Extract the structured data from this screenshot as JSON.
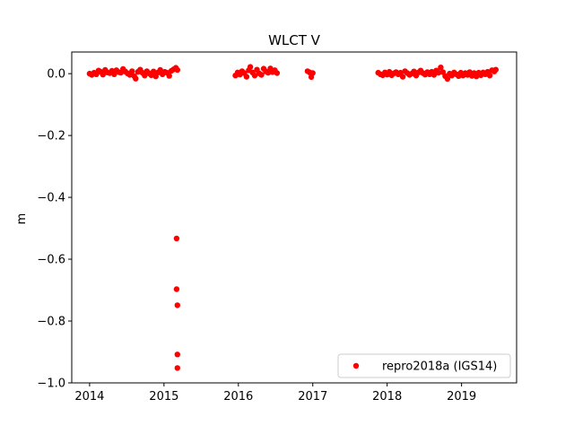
{
  "chart_data": {
    "type": "scatter",
    "title": "WLCT V",
    "xlabel": "",
    "ylabel": "m",
    "xlim": [
      2013.76,
      2019.74
    ],
    "ylim": [
      -1.0,
      0.07
    ],
    "x_ticks": [
      2014,
      2015,
      2016,
      2017,
      2018,
      2019
    ],
    "x_tick_labels": [
      "2014",
      "2015",
      "2016",
      "2017",
      "2018",
      "2019"
    ],
    "y_ticks": [
      0.0,
      -0.2,
      -0.4,
      -0.6,
      -0.8,
      -1.0
    ],
    "y_tick_labels": [
      "0.0",
      "−0.2",
      "−0.4",
      "−0.6",
      "−0.8",
      "−1.0"
    ],
    "grid": false,
    "legend_position": "lower-right",
    "marker": "circle",
    "series_color": "#ff0000",
    "series": [
      {
        "name": "repro2018a (IGS14)",
        "points": [
          [
            2014.0,
            0.0
          ],
          [
            2014.03,
            -0.004
          ],
          [
            2014.06,
            0.003
          ],
          [
            2014.09,
            -0.002
          ],
          [
            2014.12,
            0.01
          ],
          [
            2014.15,
            0.006
          ],
          [
            2014.18,
            -0.003
          ],
          [
            2014.21,
            0.012
          ],
          [
            2014.24,
            0.004
          ],
          [
            2014.27,
            0.002
          ],
          [
            2014.3,
            0.009
          ],
          [
            2014.33,
            -0.002
          ],
          [
            2014.36,
            0.011
          ],
          [
            2014.39,
            0.005
          ],
          [
            2014.42,
            0.003
          ],
          [
            2014.45,
            0.015
          ],
          [
            2014.48,
            0.007
          ],
          [
            2014.51,
            0.001
          ],
          [
            2014.54,
            -0.004
          ],
          [
            2014.57,
            0.008
          ],
          [
            2014.6,
            -0.008
          ],
          [
            2014.62,
            -0.016
          ],
          [
            2014.65,
            0.006
          ],
          [
            2014.68,
            0.013
          ],
          [
            2014.71,
            0.003
          ],
          [
            2014.74,
            -0.006
          ],
          [
            2014.77,
            0.008
          ],
          [
            2014.8,
            0.001
          ],
          [
            2014.83,
            -0.005
          ],
          [
            2014.86,
            0.007
          ],
          [
            2014.89,
            -0.009
          ],
          [
            2014.92,
            0.004
          ],
          [
            2014.95,
            0.012
          ],
          [
            2014.98,
            -0.002
          ],
          [
            2015.01,
            0.006
          ],
          [
            2015.04,
            0.003
          ],
          [
            2015.07,
            -0.007
          ],
          [
            2015.1,
            0.009
          ],
          [
            2015.13,
            0.014
          ],
          [
            2015.16,
            0.019
          ],
          [
            2015.18,
            0.012
          ],
          [
            2015.96,
            -0.006
          ],
          [
            2015.99,
            0.004
          ],
          [
            2016.02,
            -0.003
          ],
          [
            2016.05,
            0.008
          ],
          [
            2016.08,
            0.002
          ],
          [
            2016.11,
            -0.01
          ],
          [
            2016.14,
            0.011
          ],
          [
            2016.16,
            0.022
          ],
          [
            2016.19,
            0.004
          ],
          [
            2016.22,
            -0.006
          ],
          [
            2016.25,
            0.013
          ],
          [
            2016.28,
            0.001
          ],
          [
            2016.31,
            -0.004
          ],
          [
            2016.34,
            0.016
          ],
          [
            2016.37,
            0.007
          ],
          [
            2016.4,
            0.003
          ],
          [
            2016.43,
            0.017
          ],
          [
            2016.46,
            0.005
          ],
          [
            2016.49,
            0.011
          ],
          [
            2016.52,
            0.002
          ],
          [
            2016.93,
            0.008
          ],
          [
            2016.96,
            0.004
          ],
          [
            2016.98,
            -0.011
          ],
          [
            2017.0,
            0.002
          ],
          [
            2017.88,
            0.003
          ],
          [
            2017.91,
            -0.002
          ],
          [
            2017.94,
            -0.005
          ],
          [
            2017.97,
            0.004
          ],
          [
            2018.0,
            -0.003
          ],
          [
            2018.03,
            0.006
          ],
          [
            2018.06,
            -0.005
          ],
          [
            2018.09,
            0.001
          ],
          [
            2018.12,
            0.005
          ],
          [
            2018.15,
            -0.002
          ],
          [
            2018.18,
            0.003
          ],
          [
            2018.21,
            -0.01
          ],
          [
            2018.24,
            0.008
          ],
          [
            2018.27,
            0.002
          ],
          [
            2018.3,
            -0.004
          ],
          [
            2018.33,
            0.0
          ],
          [
            2018.36,
            0.007
          ],
          [
            2018.39,
            -0.006
          ],
          [
            2018.42,
            0.004
          ],
          [
            2018.45,
            0.01
          ],
          [
            2018.48,
            0.002
          ],
          [
            2018.51,
            -0.003
          ],
          [
            2018.54,
            0.005
          ],
          [
            2018.57,
            -0.002
          ],
          [
            2018.6,
            0.006
          ],
          [
            2018.63,
            -0.004
          ],
          [
            2018.66,
            0.01
          ],
          [
            2018.69,
            0.003
          ],
          [
            2018.72,
            0.02
          ],
          [
            2018.75,
            0.005
          ],
          [
            2018.78,
            -0.008
          ],
          [
            2018.81,
            -0.017
          ],
          [
            2018.84,
            0.0
          ],
          [
            2018.87,
            -0.006
          ],
          [
            2018.9,
            0.004
          ],
          [
            2018.93,
            -0.002
          ],
          [
            2018.96,
            -0.008
          ],
          [
            2018.99,
            0.003
          ],
          [
            2019.02,
            -0.006
          ],
          [
            2019.05,
            0.002
          ],
          [
            2019.08,
            -0.004
          ],
          [
            2019.11,
            0.005
          ],
          [
            2019.14,
            -0.007
          ],
          [
            2019.17,
            0.002
          ],
          [
            2019.2,
            -0.009
          ],
          [
            2019.23,
            0.003
          ],
          [
            2019.26,
            -0.005
          ],
          [
            2019.29,
            0.004
          ],
          [
            2019.32,
            -0.002
          ],
          [
            2019.35,
            0.006
          ],
          [
            2019.38,
            -0.006
          ],
          [
            2019.41,
            0.011
          ],
          [
            2019.44,
            0.007
          ],
          [
            2019.46,
            0.013
          ],
          [
            2015.17,
            -0.533
          ],
          [
            2015.17,
            -0.697
          ],
          [
            2015.18,
            -0.749
          ],
          [
            2015.18,
            -0.908
          ],
          [
            2015.18,
            -0.952
          ]
        ]
      }
    ]
  }
}
